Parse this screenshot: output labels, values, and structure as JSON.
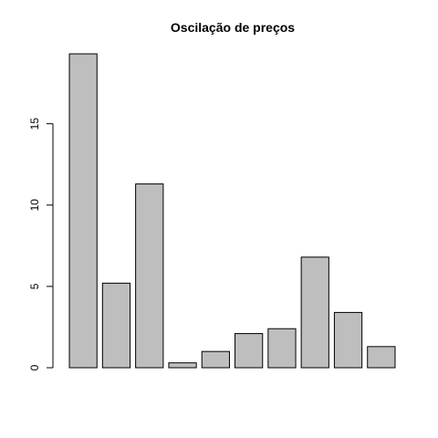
{
  "chart_data": {
    "type": "bar",
    "title": "Oscilação de preços",
    "xlabel": "",
    "ylabel": "",
    "values": [
      19.3,
      5.2,
      11.3,
      0.3,
      1.0,
      2.1,
      2.4,
      6.8,
      3.4,
      1.3
    ],
    "ylim": [
      0,
      19.3
    ],
    "yticks": [
      0,
      5,
      10,
      15
    ],
    "bar_color": "#bebebe",
    "border_color": "#000000",
    "grid": false,
    "legend": "none"
  }
}
